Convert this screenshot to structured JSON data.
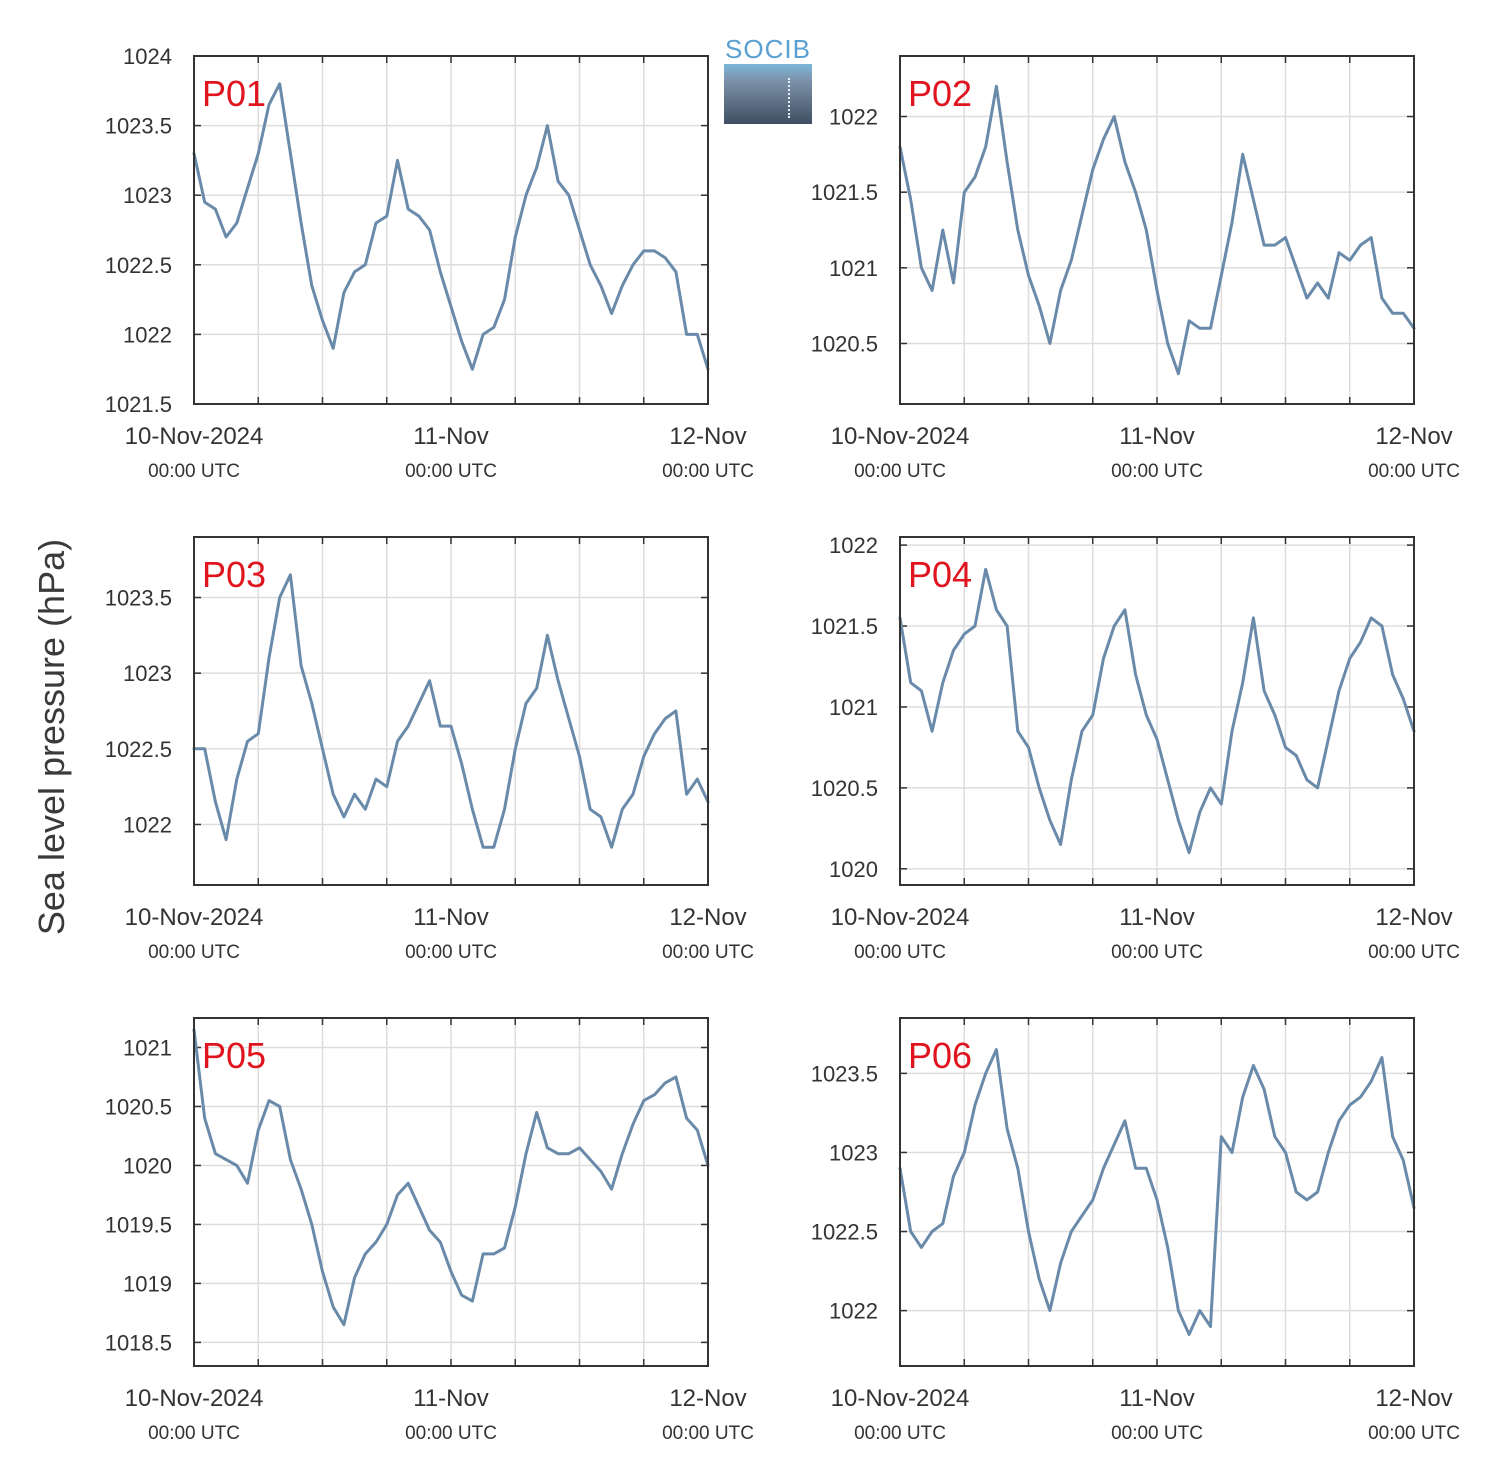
{
  "figure": {
    "ylabel": "Sea level pressure (hPa)",
    "logo_text": "SOCIB",
    "line_color": "#6a8aaa",
    "panel_label_color": "#e0141e",
    "x_ticks": [
      {
        "pos": 0,
        "label": "10-Nov-2024",
        "sub": "00:00 UTC"
      },
      {
        "pos": 24,
        "label": "11-Nov",
        "sub": "00:00 UTC"
      },
      {
        "pos": 48,
        "label": "12-Nov",
        "sub": "00:00 UTC"
      }
    ]
  },
  "chart_data": [
    {
      "type": "line",
      "title": "P01",
      "ylabel": "Sea level pressure (hPa)",
      "xlim": [
        0,
        48
      ],
      "ylim": [
        1021.5,
        1024
      ],
      "yticks": [
        1021.5,
        1022,
        1022.5,
        1023,
        1023.5,
        1024
      ],
      "ytick_labels": [
        "1021.5",
        "1022",
        "1022.5",
        "1023",
        "1023.5",
        "1024"
      ],
      "x": [
        0,
        1,
        2,
        3,
        4,
        5,
        6,
        7,
        8,
        9,
        10,
        11,
        12,
        13,
        14,
        15,
        16,
        17,
        18,
        19,
        20,
        21,
        22,
        23,
        24,
        25,
        26,
        27,
        28,
        29,
        30,
        31,
        32,
        33,
        34,
        35,
        36,
        37,
        38,
        39,
        40,
        41,
        42,
        43,
        44,
        45,
        46,
        47,
        48
      ],
      "y": [
        1023.3,
        1022.95,
        1022.9,
        1022.7,
        1022.8,
        1023.05,
        1023.3,
        1023.65,
        1023.8,
        1023.3,
        1022.8,
        1022.35,
        1022.1,
        1021.9,
        1022.3,
        1022.45,
        1022.5,
        1022.8,
        1022.85,
        1023.25,
        1022.9,
        1022.85,
        1022.75,
        1022.45,
        1022.2,
        1021.95,
        1021.75,
        1022.0,
        1022.05,
        1022.25,
        1022.7,
        1023.0,
        1023.2,
        1023.5,
        1023.1,
        1023.0,
        1022.75,
        1022.5,
        1022.35,
        1022.15,
        1022.35,
        1022.5,
        1022.6,
        1022.6,
        1022.55,
        1022.45,
        1022.0,
        1022.0,
        1021.75
      ]
    },
    {
      "type": "line",
      "title": "P02",
      "ylabel": "Sea level pressure (hPa)",
      "xlim": [
        0,
        48
      ],
      "ylim": [
        1020.1,
        1022.4
      ],
      "yticks": [
        1020.5,
        1021,
        1021.5,
        1022
      ],
      "ytick_labels": [
        "1020.5",
        "1021",
        "1021.5",
        "1022"
      ],
      "x": [
        0,
        1,
        2,
        3,
        4,
        5,
        6,
        7,
        8,
        9,
        10,
        11,
        12,
        13,
        14,
        15,
        16,
        17,
        18,
        19,
        20,
        21,
        22,
        23,
        24,
        25,
        26,
        27,
        28,
        29,
        30,
        31,
        32,
        33,
        34,
        35,
        36,
        37,
        38,
        39,
        40,
        41,
        42,
        43,
        44,
        45,
        46,
        47,
        48
      ],
      "y": [
        1021.8,
        1021.45,
        1021.0,
        1020.85,
        1021.25,
        1020.9,
        1021.5,
        1021.6,
        1021.8,
        1022.2,
        1021.7,
        1021.25,
        1020.95,
        1020.75,
        1020.5,
        1020.85,
        1021.05,
        1021.35,
        1021.65,
        1021.85,
        1022.0,
        1021.7,
        1021.5,
        1021.25,
        1020.85,
        1020.5,
        1020.3,
        1020.65,
        1020.6,
        1020.6,
        1020.95,
        1021.3,
        1021.75,
        1021.45,
        1021.15,
        1021.15,
        1021.2,
        1021.0,
        1020.8,
        1020.9,
        1020.8,
        1021.1,
        1021.05,
        1021.15,
        1021.2,
        1020.8,
        1020.7,
        1020.7,
        1020.6
      ]
    },
    {
      "type": "line",
      "title": "P03",
      "ylabel": "Sea level pressure (hPa)",
      "xlim": [
        0,
        48
      ],
      "ylim": [
        1021.6,
        1023.9
      ],
      "yticks": [
        1022,
        1022.5,
        1023,
        1023.5
      ],
      "ytick_labels": [
        "1022",
        "1022.5",
        "1023",
        "1023.5"
      ],
      "x": [
        0,
        1,
        2,
        3,
        4,
        5,
        6,
        7,
        8,
        9,
        10,
        11,
        12,
        13,
        14,
        15,
        16,
        17,
        18,
        19,
        20,
        21,
        22,
        23,
        24,
        25,
        26,
        27,
        28,
        29,
        30,
        31,
        32,
        33,
        34,
        35,
        36,
        37,
        38,
        39,
        40,
        41,
        42,
        43,
        44,
        45,
        46,
        47,
        48
      ],
      "y": [
        1022.5,
        1022.5,
        1022.15,
        1021.9,
        1022.3,
        1022.55,
        1022.6,
        1023.1,
        1023.5,
        1023.65,
        1023.05,
        1022.8,
        1022.5,
        1022.2,
        1022.05,
        1022.2,
        1022.1,
        1022.3,
        1022.25,
        1022.55,
        1022.65,
        1022.8,
        1022.95,
        1022.65,
        1022.65,
        1022.4,
        1022.1,
        1021.85,
        1021.85,
        1022.1,
        1022.5,
        1022.8,
        1022.9,
        1023.25,
        1022.95,
        1022.7,
        1022.45,
        1022.1,
        1022.05,
        1021.85,
        1022.1,
        1022.2,
        1022.45,
        1022.6,
        1022.7,
        1022.75,
        1022.2,
        1022.3,
        1022.15
      ]
    },
    {
      "type": "line",
      "title": "P04",
      "ylabel": "Sea level pressure (hPa)",
      "xlim": [
        0,
        48
      ],
      "ylim": [
        1019.9,
        1022.05
      ],
      "yticks": [
        1020,
        1020.5,
        1021,
        1021.5,
        1022
      ],
      "ytick_labels": [
        "1020",
        "1020.5",
        "1021",
        "1021.5",
        "1022"
      ],
      "x": [
        0,
        1,
        2,
        3,
        4,
        5,
        6,
        7,
        8,
        9,
        10,
        11,
        12,
        13,
        14,
        15,
        16,
        17,
        18,
        19,
        20,
        21,
        22,
        23,
        24,
        25,
        26,
        27,
        28,
        29,
        30,
        31,
        32,
        33,
        34,
        35,
        36,
        37,
        38,
        39,
        40,
        41,
        42,
        43,
        44,
        45,
        46,
        47,
        48
      ],
      "y": [
        1021.55,
        1021.15,
        1021.1,
        1020.85,
        1021.15,
        1021.35,
        1021.45,
        1021.5,
        1021.85,
        1021.6,
        1021.5,
        1020.85,
        1020.75,
        1020.5,
        1020.3,
        1020.15,
        1020.55,
        1020.85,
        1020.95,
        1021.3,
        1021.5,
        1021.6,
        1021.2,
        1020.95,
        1020.8,
        1020.55,
        1020.3,
        1020.1,
        1020.35,
        1020.5,
        1020.4,
        1020.85,
        1021.15,
        1021.55,
        1021.1,
        1020.95,
        1020.75,
        1020.7,
        1020.55,
        1020.5,
        1020.8,
        1021.1,
        1021.3,
        1021.4,
        1021.55,
        1021.5,
        1021.2,
        1021.05,
        1020.85
      ]
    },
    {
      "type": "line",
      "title": "P05",
      "ylabel": "Sea level pressure (hPa)",
      "xlim": [
        0,
        48
      ],
      "ylim": [
        1018.3,
        1021.25
      ],
      "yticks": [
        1018.5,
        1019,
        1019.5,
        1020,
        1020.5,
        1021
      ],
      "ytick_labels": [
        "1018.5",
        "1019",
        "1019.5",
        "1020",
        "1020.5",
        "1021"
      ],
      "x": [
        0,
        1,
        2,
        3,
        4,
        5,
        6,
        7,
        8,
        9,
        10,
        11,
        12,
        13,
        14,
        15,
        16,
        17,
        18,
        19,
        20,
        21,
        22,
        23,
        24,
        25,
        26,
        27,
        28,
        29,
        30,
        31,
        32,
        33,
        34,
        35,
        36,
        37,
        38,
        39,
        40,
        41,
        42,
        43,
        44,
        45,
        46,
        47,
        48
      ],
      "y": [
        1021.15,
        1020.4,
        1020.1,
        1020.05,
        1020.0,
        1019.85,
        1020.3,
        1020.55,
        1020.5,
        1020.05,
        1019.8,
        1019.5,
        1019.1,
        1018.8,
        1018.65,
        1019.05,
        1019.25,
        1019.35,
        1019.5,
        1019.75,
        1019.85,
        1019.65,
        1019.45,
        1019.35,
        1019.1,
        1018.9,
        1018.85,
        1019.25,
        1019.25,
        1019.3,
        1019.65,
        1020.1,
        1020.45,
        1020.15,
        1020.1,
        1020.1,
        1020.15,
        1020.05,
        1019.95,
        1019.8,
        1020.1,
        1020.35,
        1020.55,
        1020.6,
        1020.7,
        1020.75,
        1020.4,
        1020.3,
        1020.0
      ]
    },
    {
      "type": "line",
      "title": "P06",
      "ylabel": "Sea level pressure (hPa)",
      "xlim": [
        0,
        48
      ],
      "ylim": [
        1021.65,
        1023.85
      ],
      "yticks": [
        1022,
        1022.5,
        1023,
        1023.5
      ],
      "ytick_labels": [
        "1022",
        "1022.5",
        "1023",
        "1023.5"
      ],
      "x": [
        0,
        1,
        2,
        3,
        4,
        5,
        6,
        7,
        8,
        9,
        10,
        11,
        12,
        13,
        14,
        15,
        16,
        17,
        18,
        19,
        20,
        21,
        22,
        23,
        24,
        25,
        26,
        27,
        28,
        29,
        30,
        31,
        32,
        33,
        34,
        35,
        36,
        37,
        38,
        39,
        40,
        41,
        42,
        43,
        44,
        45,
        46,
        47,
        48
      ],
      "y": [
        1022.9,
        1022.5,
        1022.4,
        1022.5,
        1022.55,
        1022.85,
        1023.0,
        1023.3,
        1023.5,
        1023.65,
        1023.15,
        1022.9,
        1022.5,
        1022.2,
        1022.0,
        1022.3,
        1022.5,
        1022.6,
        1022.7,
        1022.9,
        1023.05,
        1023.2,
        1022.9,
        1022.9,
        1022.7,
        1022.4,
        1022.0,
        1021.85,
        1022.0,
        1021.9,
        1023.1,
        1023.0,
        1023.35,
        1023.55,
        1023.4,
        1023.1,
        1023.0,
        1022.75,
        1022.7,
        1022.75,
        1023.0,
        1023.2,
        1023.3,
        1023.35,
        1023.45,
        1023.6,
        1023.1,
        1022.95,
        1022.65
      ]
    }
  ]
}
